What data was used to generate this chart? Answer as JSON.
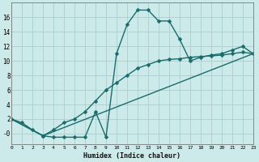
{
  "title": "",
  "xlabel": "Humidex (Indice chaleur)",
  "ylabel": "",
  "bg_color": "#cceaea",
  "line_color": "#1a6b6b",
  "grid_color": "#aacece",
  "curve1_x": [
    0,
    1,
    2,
    3,
    4,
    5,
    6,
    7,
    8,
    9,
    10,
    11,
    12,
    13,
    14,
    15,
    16,
    17,
    18,
    19,
    20,
    21,
    22,
    23
  ],
  "curve1_y": [
    2,
    1.5,
    0.5,
    -0.3,
    -0.5,
    -0.5,
    -0.5,
    -0.5,
    3,
    -0.5,
    11,
    15,
    17,
    17,
    15.5,
    15.5,
    13,
    10,
    10.5,
    10.8,
    11,
    11.5,
    12,
    11
  ],
  "curve2_x": [
    0,
    3,
    4,
    5,
    6,
    7,
    8,
    9,
    10,
    11,
    12,
    13,
    14,
    15,
    16,
    17,
    18,
    19,
    20,
    21,
    22,
    23
  ],
  "curve2_y": [
    2,
    -0.3,
    0.5,
    1.5,
    2.0,
    3.0,
    4.5,
    6.0,
    7.0,
    8.0,
    9.0,
    9.5,
    10.0,
    10.2,
    10.3,
    10.5,
    10.6,
    10.7,
    10.8,
    11.0,
    11.2,
    11
  ],
  "curve3_x": [
    0,
    3,
    23
  ],
  "curve3_y": [
    2,
    -0.3,
    11
  ],
  "xlim": [
    0,
    23
  ],
  "ylim": [
    -1.5,
    18
  ],
  "yticks": [
    0,
    2,
    4,
    6,
    8,
    10,
    12,
    14,
    16
  ],
  "ytick_labels": [
    "-0",
    "2",
    "4",
    "6",
    "8",
    "10",
    "12",
    "14",
    "16"
  ],
  "xticks": [
    0,
    1,
    2,
    3,
    4,
    5,
    6,
    7,
    8,
    9,
    10,
    11,
    12,
    13,
    14,
    15,
    16,
    17,
    18,
    19,
    20,
    21,
    22,
    23
  ],
  "marker": "D",
  "marker_size": 2.5,
  "line_width": 1.0
}
